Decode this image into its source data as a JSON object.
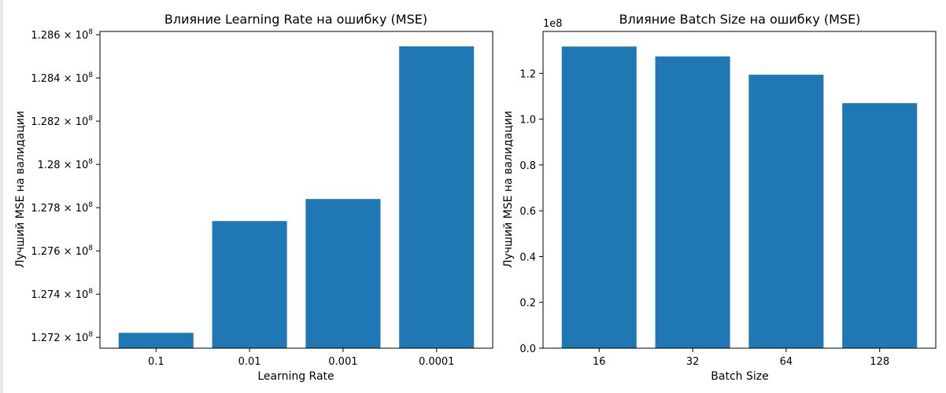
{
  "chart_data": [
    {
      "type": "bar",
      "title": "Влияние Learning Rate на ошибку (MSE)",
      "xlabel": "Learning Rate",
      "ylabel": "Лучший MSE на валидации",
      "categories": [
        "0.1",
        "0.01",
        "0.001",
        "0.0001"
      ],
      "values": [
        127221000,
        127738000,
        127840000,
        128546000
      ],
      "ylim": [
        127150000,
        128615000
      ],
      "yticks": [
        127200000,
        127400000,
        127600000,
        127800000,
        128000000,
        128200000,
        128400000,
        128600000
      ],
      "ytick_mantissas": [
        "1.272",
        "1.274",
        "1.276",
        "1.278",
        "1.28",
        "1.282",
        "1.284",
        "1.286"
      ],
      "ytick_base": "10",
      "ytick_exponent": "8",
      "color": "#1f77b4",
      "grid": false
    },
    {
      "type": "bar",
      "title": "Влияние Batch Size на ошибку (MSE)",
      "xlabel": "Batch Size",
      "ylabel": "Лучший MSE на валидации",
      "categories": [
        "16",
        "32",
        "64",
        "128"
      ],
      "values": [
        131700000,
        127400000,
        119400000,
        107000000
      ],
      "ylim": [
        0,
        138300000
      ],
      "yticks": [
        0,
        20000000,
        40000000,
        60000000,
        80000000,
        100000000,
        120000000
      ],
      "ytick_labels": [
        "0.0",
        "0.2",
        "0.4",
        "0.6",
        "0.8",
        "1.0",
        "1.2"
      ],
      "offset_text": "1e8",
      "color": "#1f77b4",
      "grid": false
    }
  ]
}
